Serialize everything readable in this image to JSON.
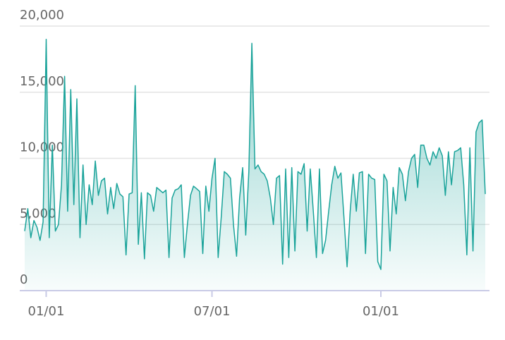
{
  "chart_data": {
    "type": "area",
    "categories": [
      null,
      null,
      null,
      null,
      null,
      null,
      null,
      "01/01",
      null,
      null,
      null,
      null,
      null,
      null,
      null,
      null,
      null,
      null,
      null,
      null,
      null,
      null,
      null,
      null,
      null,
      null,
      null,
      null,
      null,
      null,
      null,
      null,
      null,
      null,
      null,
      null,
      null,
      null,
      null,
      null,
      null,
      null,
      null,
      null,
      null,
      null,
      null,
      null,
      null,
      null,
      null,
      null,
      null,
      null,
      null,
      null,
      null,
      null,
      null,
      null,
      null,
      "07/01",
      null,
      null,
      null,
      null,
      null,
      null,
      null,
      null,
      null,
      null,
      null,
      null,
      null,
      null,
      null,
      null,
      null,
      null,
      null,
      null,
      null,
      null,
      null,
      null,
      null,
      null,
      null,
      null,
      null,
      null,
      null,
      null,
      null,
      null,
      null,
      null,
      null,
      null,
      null,
      null,
      null,
      null,
      null,
      null,
      null,
      null,
      null,
      null,
      null,
      null,
      null,
      null,
      null,
      null,
      "01/01",
      null,
      null,
      null,
      null,
      null,
      null,
      null,
      null,
      null,
      null,
      null,
      null,
      null,
      null,
      null,
      null,
      null,
      null,
      null,
      null,
      null,
      null,
      null,
      null,
      null,
      null,
      null,
      null,
      null,
      null,
      null,
      null,
      null,
      null
    ],
    "values": [
      4500,
      6200,
      4000,
      5300,
      4800,
      3800,
      5200,
      19000,
      4000,
      11000,
      4500,
      5000,
      8000,
      16200,
      6000,
      15200,
      6500,
      14500,
      4000,
      9500,
      5000,
      8000,
      6500,
      9800,
      7200,
      8300,
      8500,
      5800,
      7800,
      6200,
      8100,
      7300,
      7100,
      2700,
      7300,
      7400,
      15500,
      3500,
      7400,
      2400,
      7400,
      7200,
      6000,
      7800,
      7600,
      7400,
      7600,
      2500,
      7000,
      7600,
      7700,
      8000,
      2500,
      5000,
      7200,
      7900,
      7700,
      7500,
      2800,
      7900,
      6000,
      8500,
      10000,
      2500,
      5500,
      9000,
      8800,
      8500,
      5000,
      2600,
      7000,
      9300,
      4200,
      9000,
      18700,
      9200,
      9500,
      9000,
      8800,
      8300,
      7000,
      5000,
      8500,
      8700,
      2000,
      9200,
      2500,
      9300,
      3000,
      9000,
      8800,
      9600,
      4500,
      9200,
      6000,
      2500,
      9200,
      2800,
      3800,
      6000,
      8000,
      9400,
      8500,
      8900,
      5500,
      1800,
      6000,
      8800,
      6000,
      8900,
      9000,
      2800,
      8800,
      8500,
      8400,
      2200,
      1600,
      8800,
      8300,
      3000,
      7800,
      5800,
      9300,
      8800,
      6800,
      9000,
      10000,
      10300,
      7800,
      11000,
      11000,
      10000,
      9500,
      10500,
      10000,
      10800,
      10200,
      7200,
      10500,
      8000,
      10500,
      10600,
      10800,
      8000,
      2700,
      10800,
      3000,
      12000,
      12700,
      12900,
      7300
    ],
    "color": "#1aa39a",
    "ylim": [
      0,
      20000
    ],
    "yticks": [
      0,
      {
        "value": 5000,
        "label": "5,000"
      },
      {
        "value": 10000,
        "label": "10,000"
      },
      {
        "value": 15000,
        "label": "15,000"
      },
      {
        "value": 20000,
        "label": "20,000"
      }
    ],
    "grid": true
  }
}
